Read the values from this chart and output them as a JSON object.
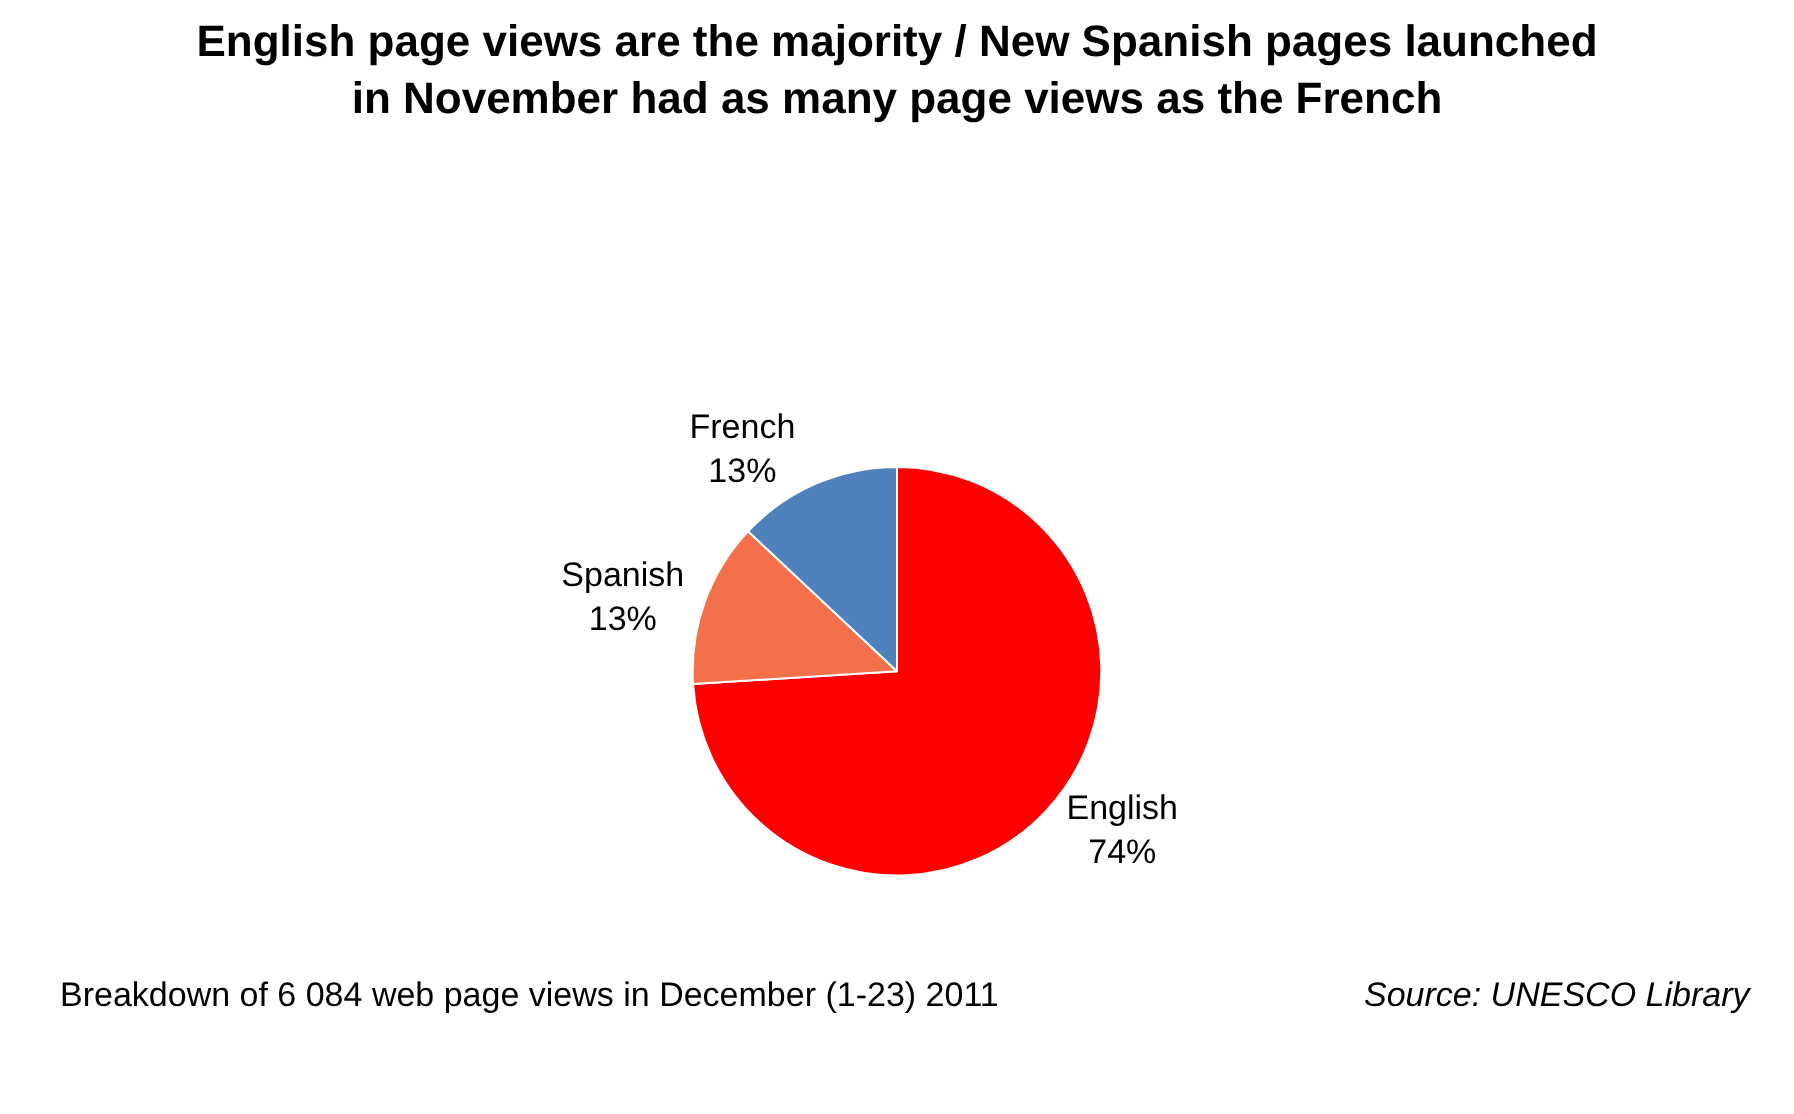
{
  "chart_data": {
    "type": "pie",
    "title": "English page views are the majority / New Spanish pages launched in November had as many page views as the French",
    "categories": [
      "English",
      "Spanish",
      "French"
    ],
    "values": [
      74,
      13,
      13
    ],
    "value_labels": [
      "74%",
      "13%",
      "13%"
    ],
    "colors": [
      "#ff0000",
      "#f4704a",
      "#4f81bd"
    ],
    "annotations": [
      "Breakdown of 6 084 web page views in December (1-23) 2011",
      "Source: UNESCO Library"
    ],
    "legend": false
  }
}
